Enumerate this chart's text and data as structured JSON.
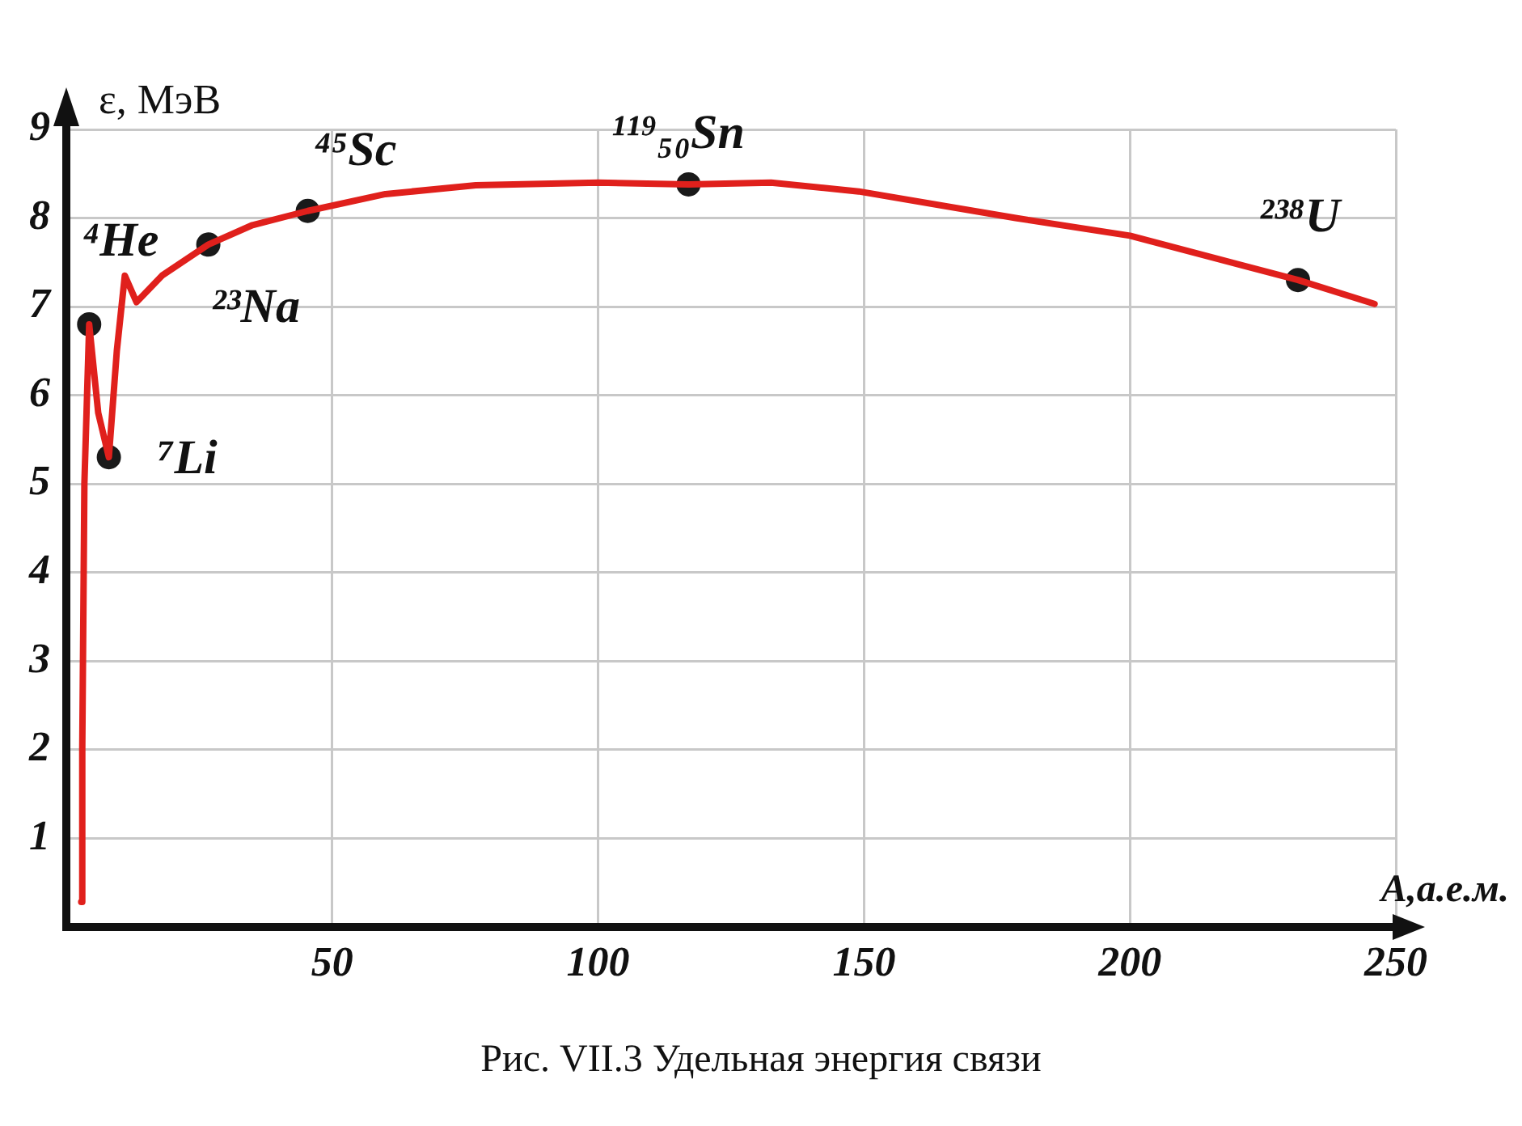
{
  "chart_data": {
    "type": "line",
    "title": "Рис. VII.3  Удельная энергия связи",
    "xlabel": "А,а.е.м.",
    "ylabel": "ε, МэВ",
    "xlim": [
      0,
      250
    ],
    "xticks": [
      50,
      100,
      150,
      200,
      250
    ],
    "ylim": [
      0,
      9
    ],
    "yticks": [
      1,
      2,
      3,
      4,
      5,
      6,
      7,
      8,
      9
    ],
    "grid": true,
    "legend": false,
    "series": [
      {
        "type": "line",
        "color": "#e0201c",
        "line_style": "solid",
        "marker": "none",
        "x": [
          2.8,
          3.0,
          3.4,
          4.3,
          6,
          8,
          9.5,
          11,
          13.2,
          18,
          26.7,
          35,
          45.4,
          60,
          77,
          100,
          117,
          132.5,
          149,
          178.5,
          200,
          231.6,
          246
        ],
        "values": [
          0.28,
          2,
          5,
          6.8,
          5.8,
          5.3,
          6.5,
          7.35,
          7.05,
          7.35,
          7.7,
          7.92,
          8.08,
          8.27,
          8.37,
          8.4,
          8.38,
          8.4,
          8.3,
          8.0,
          7.8,
          7.3,
          7.03
        ]
      },
      {
        "type": "scatter",
        "color": "#1a1a1a",
        "marker": "circle",
        "x": [
          4.3,
          8,
          26.7,
          45.4,
          117,
          231.6
        ],
        "values": [
          6.8,
          5.3,
          7.7,
          8.08,
          8.38,
          7.3
        ]
      }
    ],
    "annotations": [
      {
        "text": "⁴He",
        "x": 4.3,
        "y": 6.8
      },
      {
        "text": "⁷Li",
        "x": 8,
        "y": 5.3
      },
      {
        "text": "²³Na",
        "x": 26.7,
        "y": 7.7
      },
      {
        "text": "⁴⁵Sc",
        "x": 45.4,
        "y": 8.08
      },
      {
        "text": "¹¹⁹₅₀Sn",
        "x": 117,
        "y": 8.38
      },
      {
        "text": "²³⁸U",
        "x": 231.6,
        "y": 7.3
      }
    ]
  }
}
